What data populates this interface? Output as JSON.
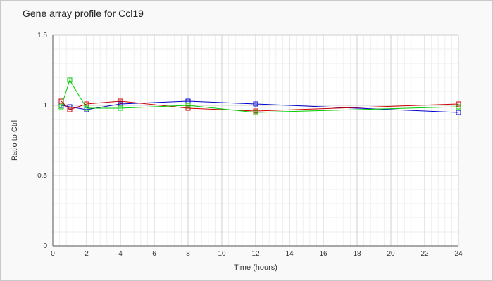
{
  "chart_data": {
    "type": "line",
    "title": "Gene array profile for Ccl19",
    "xlabel": "Time (hours)",
    "ylabel": "Ratio to Ctrl",
    "xlim": [
      0,
      24
    ],
    "ylim": [
      0,
      1.5
    ],
    "xticks": [
      0,
      2,
      4,
      6,
      8,
      10,
      12,
      14,
      16,
      18,
      20,
      22,
      24
    ],
    "yticks": [
      0,
      0.5,
      1,
      1.5
    ],
    "ytick_labels": [
      "0",
      "0.5",
      "1",
      "1.5"
    ],
    "grid": true,
    "legend": "none",
    "series": [
      {
        "color": "#0000cc",
        "x": [
          0.5,
          1,
          2,
          4,
          8,
          12,
          24
        ],
        "y": [
          1.0,
          0.99,
          0.97,
          1.01,
          1.03,
          1.01,
          0.95
        ]
      },
      {
        "color": "#cc0000",
        "x": [
          0.5,
          1,
          2,
          4,
          8,
          12,
          24
        ],
        "y": [
          1.03,
          0.97,
          1.01,
          1.03,
          0.98,
          0.96,
          1.01
        ]
      },
      {
        "color": "#00cc00",
        "x": [
          0.5,
          1,
          2,
          4,
          8,
          12,
          24
        ],
        "y": [
          0.99,
          1.18,
          0.98,
          0.98,
          1.0,
          0.95,
          0.99
        ]
      }
    ]
  }
}
